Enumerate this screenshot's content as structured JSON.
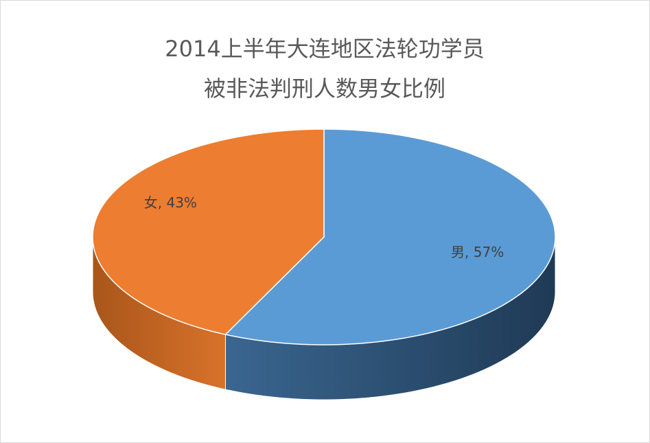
{
  "chart_data": {
    "type": "pie3d",
    "title": [
      "2014上半年大连地区法轮功学员",
      "被非法判刑人数男女比例"
    ],
    "values": [
      57,
      43
    ],
    "value_labels": [
      "男, 57%",
      "女, 43%"
    ],
    "colors": [
      "#5b9bd5",
      "#ed7d31"
    ]
  }
}
